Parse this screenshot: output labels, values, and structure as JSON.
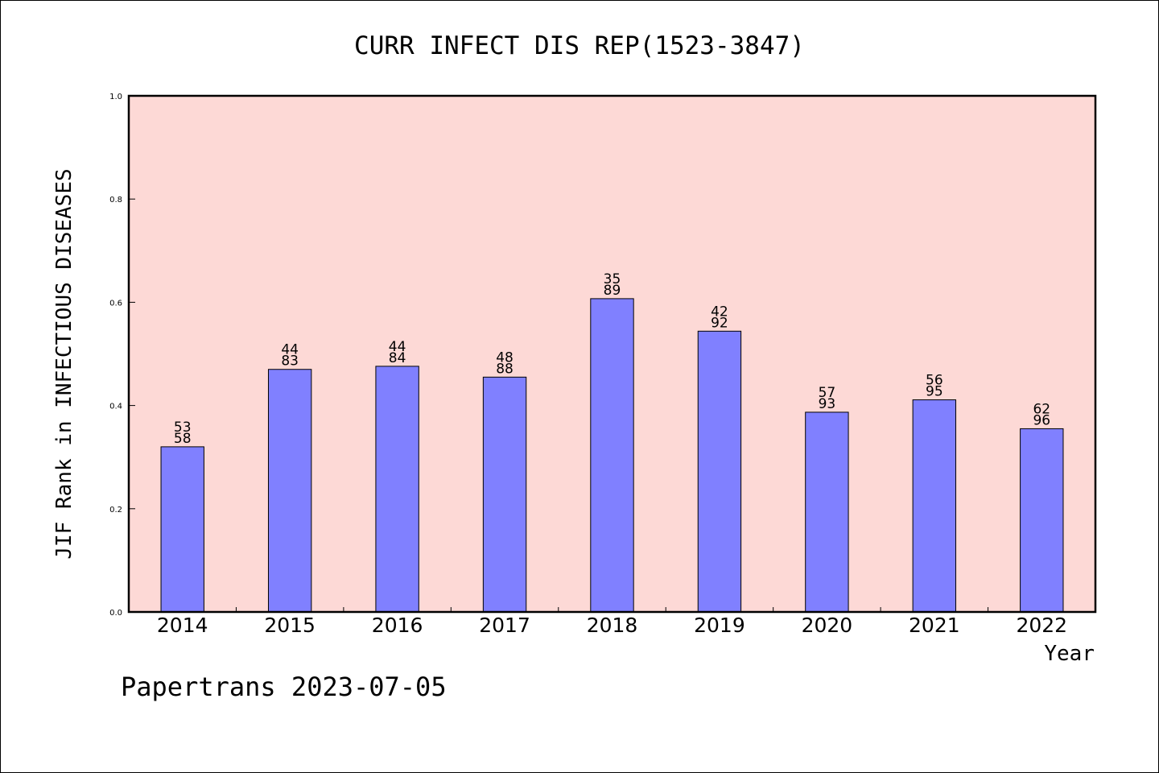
{
  "chart_data": {
    "type": "bar",
    "title": "CURR INFECT DIS REP(1523-3847)",
    "xlabel": "Year",
    "ylabel": "JIF Rank in INFECTIOUS DISEASES",
    "ylim": [
      0,
      1.0
    ],
    "yticks": [
      "0.0",
      "0.2",
      "0.4",
      "0.6",
      "0.8",
      "1.0"
    ],
    "categories": [
      "2014",
      "2015",
      "2016",
      "2017",
      "2018",
      "2019",
      "2020",
      "2021",
      "2022"
    ],
    "values": [
      0.32,
      0.47,
      0.476,
      0.455,
      0.607,
      0.544,
      0.387,
      0.411,
      0.355
    ],
    "bar_labels": [
      {
        "top": "53",
        "bottom": "58"
      },
      {
        "top": "44",
        "bottom": "83"
      },
      {
        "top": "44",
        "bottom": "84"
      },
      {
        "top": "48",
        "bottom": "88"
      },
      {
        "top": "35",
        "bottom": "89"
      },
      {
        "top": "42",
        "bottom": "92"
      },
      {
        "top": "57",
        "bottom": "93"
      },
      {
        "top": "56",
        "bottom": "95"
      },
      {
        "top": "62",
        "bottom": "96"
      }
    ],
    "grid": false,
    "colors": {
      "plot_background": "#fdd9d6",
      "bar_fill": "#8080ff",
      "bar_edge": "#000000"
    }
  },
  "footer": {
    "text": "Papertrans 2023-07-05"
  }
}
